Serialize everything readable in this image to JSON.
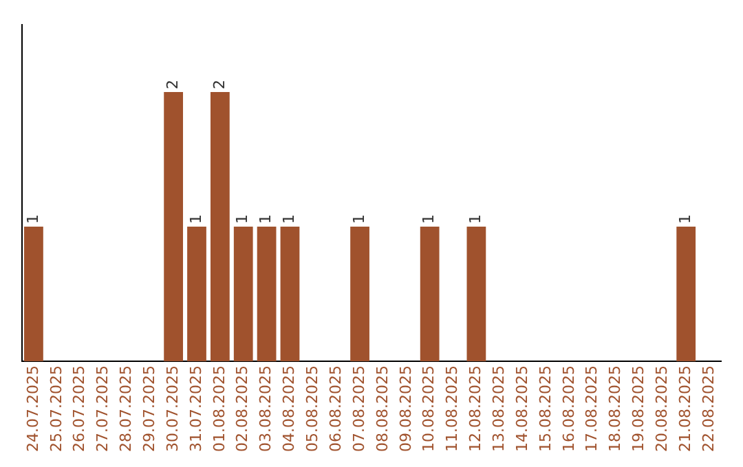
{
  "chart_data": {
    "type": "bar",
    "categories": [
      "24.07.2025",
      "25.07.2025",
      "26.07.2025",
      "27.07.2025",
      "28.07.2025",
      "29.07.2025",
      "30.07.2025",
      "31.07.2025",
      "01.08.2025",
      "02.08.2025",
      "03.08.2025",
      "04.08.2025",
      "05.08.2025",
      "06.08.2025",
      "07.08.2025",
      "08.08.2025",
      "09.08.2025",
      "10.08.2025",
      "11.08.2025",
      "12.08.2025",
      "13.08.2025",
      "14.08.2025",
      "15.08.2025",
      "16.08.2025",
      "17.08.2025",
      "18.08.2025",
      "19.08.2025",
      "20.08.2025",
      "21.08.2025",
      "22.08.2025"
    ],
    "values": [
      1,
      0,
      0,
      0,
      0,
      0,
      2,
      1,
      2,
      1,
      1,
      1,
      0,
      0,
      1,
      0,
      0,
      1,
      0,
      1,
      0,
      0,
      0,
      0,
      0,
      0,
      0,
      0,
      1,
      0
    ],
    "value_labels": [
      "1",
      null,
      null,
      null,
      null,
      null,
      "2",
      "1",
      "2",
      "1",
      "1",
      "1",
      null,
      null,
      "1",
      null,
      null,
      "1",
      null,
      "1",
      null,
      null,
      null,
      null,
      null,
      null,
      null,
      null,
      "1",
      null
    ],
    "color": "#a0522d",
    "grid": false,
    "tick_labels": "x"
  }
}
